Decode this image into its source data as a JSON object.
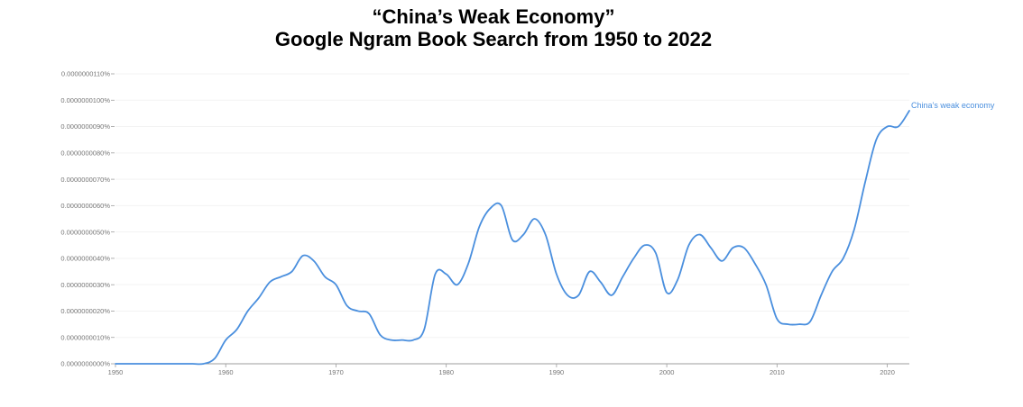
{
  "chart_data": {
    "type": "line",
    "title": "“China’s Weak Economy”",
    "subtitle": "Google Ngram Book Search from 1950 to 2022",
    "xlabel": "",
    "ylabel": "",
    "xlim": [
      1950,
      2022
    ],
    "ylim": [
      0,
      1.1e-08
    ],
    "x_ticks": [
      {
        "value": 1950,
        "label": "1950"
      },
      {
        "value": 1960,
        "label": "1960"
      },
      {
        "value": 1970,
        "label": "1970"
      },
      {
        "value": 1980,
        "label": "1980"
      },
      {
        "value": 1990,
        "label": "1990"
      },
      {
        "value": 2000,
        "label": "2000"
      },
      {
        "value": 2010,
        "label": "2010"
      },
      {
        "value": 2020,
        "label": "2020"
      }
    ],
    "y_ticks": [
      {
        "value": 0,
        "label": "0.0000000000%"
      },
      {
        "value": 1e-09,
        "label": "0.0000000010%"
      },
      {
        "value": 2e-09,
        "label": "0.0000000020%"
      },
      {
        "value": 3e-09,
        "label": "0.0000000030%"
      },
      {
        "value": 4e-09,
        "label": "0.0000000040%"
      },
      {
        "value": 5e-09,
        "label": "0.0000000050%"
      },
      {
        "value": 6e-09,
        "label": "0.0000000060%"
      },
      {
        "value": 7e-09,
        "label": "0.0000000070%"
      },
      {
        "value": 8e-09,
        "label": "0.0000000080%"
      },
      {
        "value": 9e-09,
        "label": "0.0000000090%"
      },
      {
        "value": 1e-08,
        "label": "0.0000000100%"
      },
      {
        "value": 1.1e-08,
        "label": "0.0000000110%"
      }
    ],
    "grid": true,
    "series": [
      {
        "name": "China’s weak economy",
        "color": "#4a8fde",
        "x": [
          1950,
          1951,
          1952,
          1953,
          1954,
          1955,
          1956,
          1957,
          1958,
          1959,
          1960,
          1961,
          1962,
          1963,
          1964,
          1965,
          1966,
          1967,
          1968,
          1969,
          1970,
          1971,
          1972,
          1973,
          1974,
          1975,
          1976,
          1977,
          1978,
          1979,
          1980,
          1981,
          1982,
          1983,
          1984,
          1985,
          1986,
          1987,
          1988,
          1989,
          1990,
          1991,
          1992,
          1993,
          1994,
          1995,
          1996,
          1997,
          1998,
          1999,
          2000,
          2001,
          2002,
          2003,
          2004,
          2005,
          2006,
          2007,
          2008,
          2009,
          2010,
          2011,
          2012,
          2013,
          2014,
          2015,
          2016,
          2017,
          2018,
          2019,
          2020,
          2021,
          2022
        ],
        "values": [
          0,
          0,
          0,
          0,
          0,
          0,
          0,
          0,
          0,
          2e-10,
          9e-10,
          1.3e-09,
          2e-09,
          2.5e-09,
          3.1e-09,
          3.3e-09,
          3.5e-09,
          4.1e-09,
          3.9e-09,
          3.3e-09,
          3e-09,
          2.2e-09,
          2e-09,
          1.9e-09,
          1.1e-09,
          9e-10,
          9e-10,
          9e-10,
          1.3e-09,
          3.4e-09,
          3.4e-09,
          3e-09,
          3.8e-09,
          5.2e-09,
          5.9e-09,
          6e-09,
          4.7e-09,
          4.9e-09,
          5.5e-09,
          4.9e-09,
          3.4e-09,
          2.6e-09,
          2.6e-09,
          3.5e-09,
          3.1e-09,
          2.6e-09,
          3.3e-09,
          4e-09,
          4.5e-09,
          4.2e-09,
          2.7e-09,
          3.2e-09,
          4.5e-09,
          4.9e-09,
          4.4e-09,
          3.9e-09,
          4.4e-09,
          4.4e-09,
          3.8e-09,
          3e-09,
          1.7e-09,
          1.5e-09,
          1.5e-09,
          1.6e-09,
          2.6e-09,
          3.5e-09,
          4e-09,
          5.1e-09,
          6.9e-09,
          8.5e-09,
          9e-09,
          9e-09,
          9.6e-09
        ]
      }
    ]
  }
}
